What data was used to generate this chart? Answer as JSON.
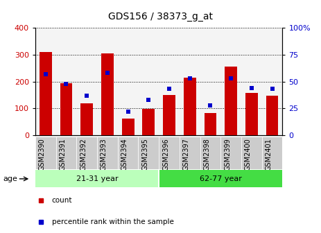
{
  "title": "GDS156 / 38373_g_at",
  "samples": [
    "GSM2390",
    "GSM2391",
    "GSM2392",
    "GSM2393",
    "GSM2394",
    "GSM2395",
    "GSM2396",
    "GSM2397",
    "GSM2398",
    "GSM2399",
    "GSM2400",
    "GSM2401"
  ],
  "counts": [
    310,
    195,
    120,
    305,
    63,
    97,
    150,
    215,
    83,
    255,
    158,
    148
  ],
  "percentiles": [
    57,
    48,
    37,
    58,
    22,
    33,
    43,
    53,
    28,
    53,
    44,
    43
  ],
  "bar_color": "#cc0000",
  "dot_color": "#0000cc",
  "ylim_left": [
    0,
    400
  ],
  "ylim_right": [
    0,
    100
  ],
  "yticks_left": [
    0,
    100,
    200,
    300,
    400
  ],
  "yticks_right": [
    0,
    25,
    50,
    75,
    100
  ],
  "groups": [
    {
      "label": "21-31 year",
      "start": 0,
      "end": 6,
      "color": "#bbffbb"
    },
    {
      "label": "62-77 year",
      "start": 6,
      "end": 12,
      "color": "#44dd44"
    }
  ],
  "age_label": "age",
  "legend_items": [
    {
      "color": "#cc0000",
      "label": "count"
    },
    {
      "color": "#0000cc",
      "label": "percentile rank within the sample"
    }
  ],
  "title_fontsize": 10,
  "tick_fontsize": 7,
  "axis_color_left": "#cc0000",
  "axis_color_right": "#0000cc",
  "cell_bg": "#dddddd",
  "fig_width": 4.63,
  "fig_height": 3.36
}
